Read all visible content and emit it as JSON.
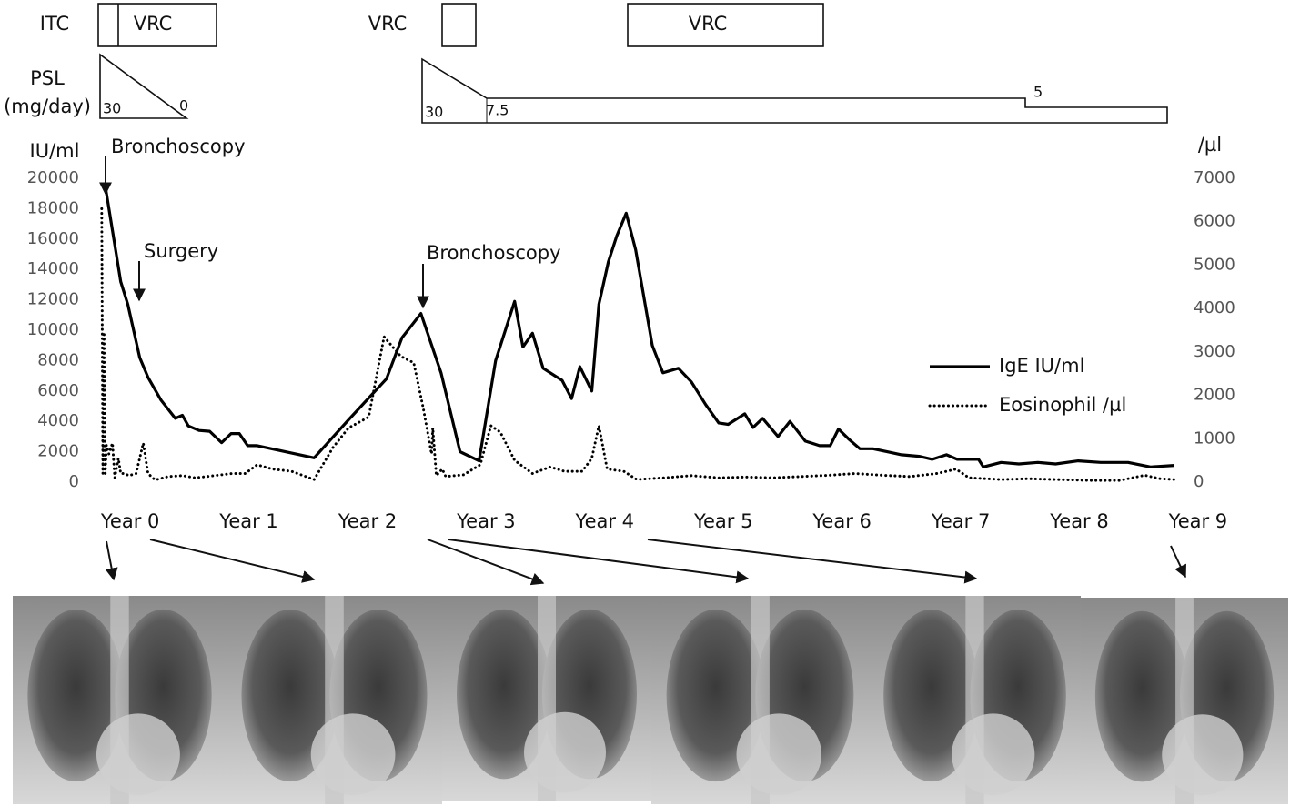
{
  "treatment": {
    "drug_label_1": "ITC",
    "drug_label_2": "VRC",
    "drug_label_3": "VRC",
    "drug_label_4": "VRC",
    "psl_label": "PSL",
    "psl_unit": "(mg/day)",
    "psl_doses": [
      30,
      0,
      30,
      7.5,
      5
    ]
  },
  "chart_data": {
    "type": "line",
    "y_unit_label": "IU/ml",
    "y2_unit_label": "/µl",
    "annotations": [
      "Bronchoscopy",
      "Surgery",
      "Bronchoscopy"
    ],
    "xlim": [
      -0.3,
      9.2
    ],
    "xticks": [
      {
        "value": 0,
        "label": "Year 0"
      },
      {
        "value": 1,
        "label": "Year 1"
      },
      {
        "value": 2,
        "label": "Year 2"
      },
      {
        "value": 3,
        "label": "Year 3"
      },
      {
        "value": 4,
        "label": "Year 4"
      },
      {
        "value": 5,
        "label": "Year 5"
      },
      {
        "value": 6,
        "label": "Year 6"
      },
      {
        "value": 7,
        "label": "Year 7"
      },
      {
        "value": 8,
        "label": "Year 8"
      },
      {
        "value": 9,
        "label": "Year 9"
      }
    ],
    "ylim": [
      0,
      20000
    ],
    "yticks": [
      0,
      2000,
      4000,
      6000,
      8000,
      10000,
      12000,
      14000,
      16000,
      18000,
      20000
    ],
    "y2lim": [
      0,
      7000
    ],
    "y2ticks": [
      0,
      1000,
      2000,
      3000,
      4000,
      5000,
      6000,
      7000
    ],
    "legend": "right",
    "series": [
      {
        "name": "IgE IU/ml",
        "color": "#000000",
        "style": "solid",
        "x": [
          -0.21,
          -0.08,
          -0.02,
          0.08,
          0.15,
          0.26,
          0.38,
          0.44,
          0.49,
          0.58,
          0.67,
          0.77,
          0.85,
          0.92,
          0.99,
          1.07,
          1.55,
          1.84,
          2.16,
          2.29,
          2.45,
          2.62,
          2.78,
          2.94,
          3.08,
          3.24,
          3.31,
          3.39,
          3.48,
          3.64,
          3.72,
          3.79,
          3.89,
          3.95,
          4.03,
          4.1,
          4.18,
          4.26,
          4.4,
          4.49,
          4.62,
          4.73,
          4.85,
          4.96,
          5.04,
          5.18,
          5.25,
          5.33,
          5.46,
          5.56,
          5.69,
          5.81,
          5.9,
          5.97,
          6.06,
          6.15,
          6.26,
          6.38,
          6.5,
          6.65,
          6.76,
          6.88,
          6.97,
          7.15,
          7.19,
          7.34,
          7.49,
          7.65,
          7.8,
          7.99,
          8.18,
          8.41,
          8.6,
          8.8
        ],
        "values": [
          19500,
          13200,
          11700,
          8200,
          6900,
          5400,
          4200,
          4400,
          3700,
          3400,
          3350,
          2600,
          3200,
          3200,
          2400,
          2400,
          1600,
          4100,
          6800,
          9500,
          11100,
          7200,
          2000,
          1400,
          8000,
          11900,
          8900,
          9800,
          7500,
          6700,
          5500,
          7600,
          6000,
          11700,
          14500,
          16200,
          17700,
          15300,
          9000,
          7200,
          7500,
          6600,
          5100,
          3900,
          3800,
          4500,
          3600,
          4200,
          3000,
          4000,
          2700,
          2400,
          2400,
          3500,
          2800,
          2200,
          2200,
          2000,
          1800,
          1700,
          1500,
          1800,
          1500,
          1500,
          1000,
          1300,
          1200,
          1300,
          1200,
          1400,
          1300,
          1300,
          1000,
          1100
        ]
      },
      {
        "name": "Eosinophil /µl",
        "color": "#000000",
        "style": "dotted",
        "axis": "y2",
        "x": [
          -0.24,
          -0.23,
          -0.22,
          -0.21,
          -0.2,
          -0.18,
          -0.15,
          -0.13,
          -0.1,
          -0.08,
          -0.05,
          -0.01,
          0.05,
          0.11,
          0.15,
          0.21,
          0.32,
          0.44,
          0.55,
          0.71,
          0.86,
          0.97,
          1.07,
          1.2,
          1.36,
          1.55,
          1.71,
          1.84,
          2.01,
          2.14,
          2.28,
          2.39,
          2.47,
          2.54,
          2.55,
          2.58,
          2.63,
          2.66,
          2.81,
          2.95,
          3.04,
          3.12,
          3.24,
          3.39,
          3.54,
          3.66,
          3.81,
          3.89,
          3.95,
          4.02,
          4.16,
          4.27,
          4.5,
          4.73,
          4.96,
          5.19,
          5.42,
          5.65,
          5.89,
          6.11,
          6.34,
          6.57,
          6.8,
          6.96,
          7.07,
          7.34,
          7.57,
          7.8,
          8.11,
          8.34,
          8.55,
          8.68,
          8.8
        ],
        "values": [
          6300,
          200,
          3400,
          200,
          850,
          650,
          900,
          100,
          550,
          200,
          200,
          150,
          200,
          900,
          200,
          50,
          130,
          150,
          100,
          150,
          200,
          200,
          400,
          300,
          250,
          60,
          800,
          1250,
          1500,
          3350,
          2900,
          2750,
          1700,
          650,
          1250,
          150,
          300,
          130,
          170,
          400,
          1300,
          1150,
          500,
          200,
          350,
          250,
          250,
          550,
          1300,
          300,
          250,
          60,
          100,
          150,
          100,
          120,
          100,
          130,
          160,
          200,
          160,
          130,
          200,
          300,
          100,
          60,
          80,
          60,
          40,
          40,
          160,
          80,
          60
        ]
      }
    ]
  }
}
